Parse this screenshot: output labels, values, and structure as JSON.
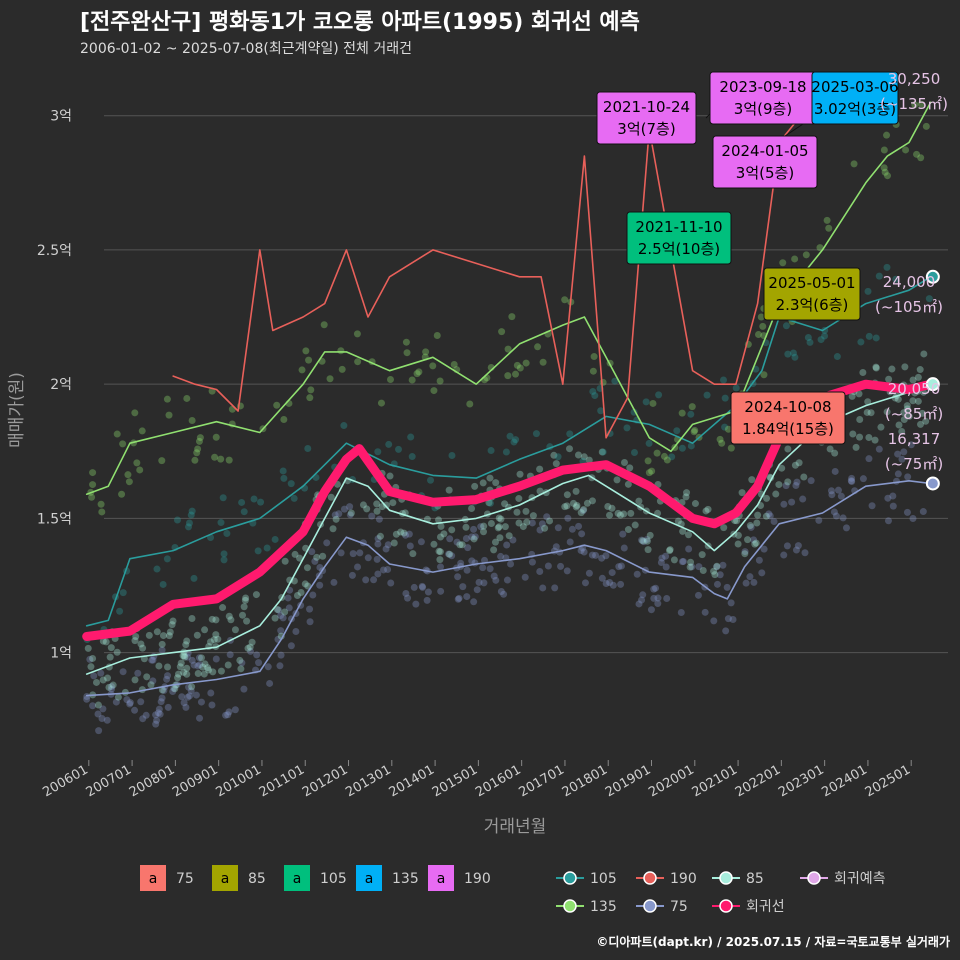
{
  "header": {
    "title": "[전주완산구] 평화동1가 코오롱 아파트(1995) 회귀선 예측",
    "subtitle": "2006-01-02 ~ 2025-07-08(최근계약일) 전체 거래건"
  },
  "caption": "©디아파트(dapt.kr) / 2025.07.15 / 자료=국토교통부 실거래가",
  "colors": {
    "background": "#2b2b2b",
    "grid": "#555555",
    "a75": "#f8766d",
    "a85": "#a3a500",
    "a105": "#00bf7d",
    "a135": "#00b0f6",
    "a190": "#e76bf3",
    "line105": "#2a9d9d",
    "line135": "#90e070",
    "line190": "#e8605a",
    "line85": "#a8eedd",
    "line75": "#8899cc",
    "regression": "#ff1a6e",
    "prediction": "#e0a8e8"
  },
  "chart_data": {
    "type": "line",
    "xlabel": "거래년월",
    "ylabel": "매매가(원)",
    "x_ticks": [
      "200601",
      "200701",
      "200801",
      "200901",
      "201001",
      "201101",
      "201201",
      "201301",
      "201401",
      "201501",
      "201601",
      "201701",
      "201801",
      "201901",
      "202001",
      "202101",
      "202201",
      "202301",
      "202401",
      "202501"
    ],
    "y_ticks": [
      {
        "value": 1.0,
        "label": "1억"
      },
      {
        "value": 1.5,
        "label": "1.5억"
      },
      {
        "value": 2.0,
        "label": "2억"
      },
      {
        "value": 2.5,
        "label": "2.5억"
      },
      {
        "value": 3.0,
        "label": "3억"
      }
    ],
    "ylim": [
      0.6,
      3.2
    ],
    "xlim": [
      2005.8,
      2025.9
    ],
    "series": [
      {
        "name": "75",
        "key": "line75",
        "points": [
          [
            2006.0,
            0.84
          ],
          [
            2007.0,
            0.85
          ],
          [
            2008.0,
            0.88
          ],
          [
            2009.0,
            0.9
          ],
          [
            2010.0,
            0.93
          ],
          [
            2010.5,
            1.05
          ],
          [
            2011.0,
            1.2
          ],
          [
            2011.5,
            1.32
          ],
          [
            2012.0,
            1.43
          ],
          [
            2012.5,
            1.4
          ],
          [
            2013.0,
            1.33
          ],
          [
            2014.0,
            1.3
          ],
          [
            2015.0,
            1.33
          ],
          [
            2016.0,
            1.35
          ],
          [
            2017.0,
            1.38
          ],
          [
            2017.5,
            1.4
          ],
          [
            2018.0,
            1.38
          ],
          [
            2019.0,
            1.3
          ],
          [
            2020.0,
            1.28
          ],
          [
            2020.5,
            1.22
          ],
          [
            2020.8,
            1.2
          ],
          [
            2021.2,
            1.32
          ],
          [
            2021.6,
            1.4
          ],
          [
            2022.0,
            1.48
          ],
          [
            2023.0,
            1.52
          ],
          [
            2024.0,
            1.62
          ],
          [
            2025.0,
            1.64
          ],
          [
            2025.5,
            1.63
          ]
        ]
      },
      {
        "name": "85",
        "key": "line85",
        "points": [
          [
            2006.0,
            0.92
          ],
          [
            2007.0,
            0.98
          ],
          [
            2008.0,
            1.0
          ],
          [
            2009.0,
            1.02
          ],
          [
            2010.0,
            1.1
          ],
          [
            2010.5,
            1.2
          ],
          [
            2011.0,
            1.35
          ],
          [
            2011.5,
            1.5
          ],
          [
            2012.0,
            1.65
          ],
          [
            2012.5,
            1.62
          ],
          [
            2013.0,
            1.53
          ],
          [
            2014.0,
            1.48
          ],
          [
            2015.0,
            1.5
          ],
          [
            2016.0,
            1.55
          ],
          [
            2017.0,
            1.63
          ],
          [
            2017.6,
            1.66
          ],
          [
            2018.0,
            1.62
          ],
          [
            2019.0,
            1.52
          ],
          [
            2020.0,
            1.45
          ],
          [
            2020.5,
            1.38
          ],
          [
            2021.0,
            1.45
          ],
          [
            2021.5,
            1.55
          ],
          [
            2022.0,
            1.7
          ],
          [
            2023.0,
            1.85
          ],
          [
            2024.0,
            1.92
          ],
          [
            2025.0,
            1.97
          ],
          [
            2025.5,
            2.0
          ]
        ]
      },
      {
        "name": "105",
        "key": "line105",
        "points": [
          [
            2006.0,
            1.1
          ],
          [
            2006.5,
            1.12
          ],
          [
            2007.0,
            1.35
          ],
          [
            2008.0,
            1.38
          ],
          [
            2009.0,
            1.45
          ],
          [
            2010.0,
            1.5
          ],
          [
            2011.0,
            1.62
          ],
          [
            2012.0,
            1.78
          ],
          [
            2013.0,
            1.7
          ],
          [
            2014.0,
            1.66
          ],
          [
            2015.0,
            1.65
          ],
          [
            2016.0,
            1.72
          ],
          [
            2017.0,
            1.78
          ],
          [
            2018.0,
            1.88
          ],
          [
            2019.0,
            1.85
          ],
          [
            2020.0,
            1.78
          ],
          [
            2021.0,
            1.92
          ],
          [
            2021.6,
            2.05
          ],
          [
            2022.0,
            2.25
          ],
          [
            2023.0,
            2.2
          ],
          [
            2024.0,
            2.3
          ],
          [
            2025.0,
            2.35
          ],
          [
            2025.5,
            2.4
          ]
        ]
      },
      {
        "name": "135",
        "key": "line135",
        "points": [
          [
            2006.0,
            1.59
          ],
          [
            2006.5,
            1.62
          ],
          [
            2007.0,
            1.78
          ],
          [
            2008.0,
            1.82
          ],
          [
            2009.0,
            1.86
          ],
          [
            2010.0,
            1.82
          ],
          [
            2011.0,
            2.0
          ],
          [
            2011.5,
            2.12
          ],
          [
            2012.0,
            2.12
          ],
          [
            2013.0,
            2.05
          ],
          [
            2014.0,
            2.1
          ],
          [
            2015.0,
            2.0
          ],
          [
            2016.0,
            2.15
          ],
          [
            2017.0,
            2.22
          ],
          [
            2017.5,
            2.25
          ],
          [
            2018.0,
            2.1
          ],
          [
            2019.0,
            1.8
          ],
          [
            2019.5,
            1.75
          ],
          [
            2020.0,
            1.85
          ],
          [
            2021.0,
            1.9
          ],
          [
            2022.0,
            2.3
          ],
          [
            2023.0,
            2.5
          ],
          [
            2024.0,
            2.75
          ],
          [
            2024.5,
            2.85
          ],
          [
            2025.0,
            2.9
          ],
          [
            2025.5,
            3.05
          ]
        ]
      },
      {
        "name": "190",
        "key": "line190",
        "points": [
          [
            2008.0,
            2.03
          ],
          [
            2008.5,
            2.0
          ],
          [
            2009.0,
            1.98
          ],
          [
            2009.5,
            1.9
          ],
          [
            2010.0,
            2.5
          ],
          [
            2010.3,
            2.2
          ],
          [
            2011.0,
            2.25
          ],
          [
            2011.5,
            2.3
          ],
          [
            2012.0,
            2.5
          ],
          [
            2012.5,
            2.25
          ],
          [
            2013.0,
            2.4
          ],
          [
            2013.5,
            2.45
          ],
          [
            2014.0,
            2.5
          ],
          [
            2016.0,
            2.4
          ],
          [
            2016.5,
            2.4
          ],
          [
            2017.0,
            2.0
          ],
          [
            2017.5,
            2.85
          ],
          [
            2018.0,
            1.8
          ],
          [
            2018.5,
            1.95
          ],
          [
            2019.0,
            2.95
          ],
          [
            2020.0,
            2.05
          ],
          [
            2020.5,
            2.0
          ],
          [
            2021.0,
            2.0
          ],
          [
            2021.5,
            2.3
          ],
          [
            2022.0,
            2.9
          ],
          [
            2022.5,
            3.0
          ]
        ]
      },
      {
        "name": "회귀선",
        "key": "regression",
        "points": [
          [
            2006.0,
            1.06
          ],
          [
            2007.0,
            1.08
          ],
          [
            2008.0,
            1.18
          ],
          [
            2009.0,
            1.2
          ],
          [
            2010.0,
            1.3
          ],
          [
            2011.0,
            1.45
          ],
          [
            2011.5,
            1.6
          ],
          [
            2012.0,
            1.72
          ],
          [
            2012.3,
            1.76
          ],
          [
            2013.0,
            1.6
          ],
          [
            2014.0,
            1.56
          ],
          [
            2015.0,
            1.57
          ],
          [
            2016.0,
            1.62
          ],
          [
            2017.0,
            1.68
          ],
          [
            2018.0,
            1.7
          ],
          [
            2019.0,
            1.62
          ],
          [
            2020.0,
            1.5
          ],
          [
            2020.5,
            1.48
          ],
          [
            2021.0,
            1.52
          ],
          [
            2021.5,
            1.62
          ],
          [
            2022.0,
            1.8
          ],
          [
            2023.0,
            1.95
          ],
          [
            2024.0,
            2.0
          ],
          [
            2025.0,
            1.98
          ],
          [
            2025.5,
            2.0
          ]
        ]
      }
    ],
    "annotations": [
      {
        "date": "2021-10-24",
        "value": "3억(7층)",
        "color_key": "a190"
      },
      {
        "date": "2023-09-18",
        "value": "3억(9층)",
        "color_key": "a190"
      },
      {
        "date": "2025-03-06",
        "value": "3.02억(3층)",
        "color_key": "a135"
      },
      {
        "date": "2024-01-05",
        "value": "3억(5층)",
        "color_key": "a190"
      },
      {
        "date": "2021-11-10",
        "value": "2.5억(10층)",
        "color_key": "a105"
      },
      {
        "date": "2025-05-01",
        "value": "2.3억(6층)",
        "color_key": "a85"
      },
      {
        "date": "2024-10-08",
        "value": "1.84억(15층)",
        "color_key": "a75"
      }
    ],
    "predictions": [
      {
        "value": "30,250",
        "area": "(~135㎡)"
      },
      {
        "value": "24,000",
        "area": "(~105㎡)"
      },
      {
        "value": "20,050",
        "area": "(~85㎡)"
      },
      {
        "value": "16,317",
        "area": "(~75㎡)"
      }
    ],
    "legend_area": [
      "75",
      "85",
      "105",
      "135",
      "190"
    ],
    "legend_lines": [
      "105",
      "190",
      "85",
      "회귀예측",
      "135",
      "75",
      "회귀선"
    ]
  }
}
